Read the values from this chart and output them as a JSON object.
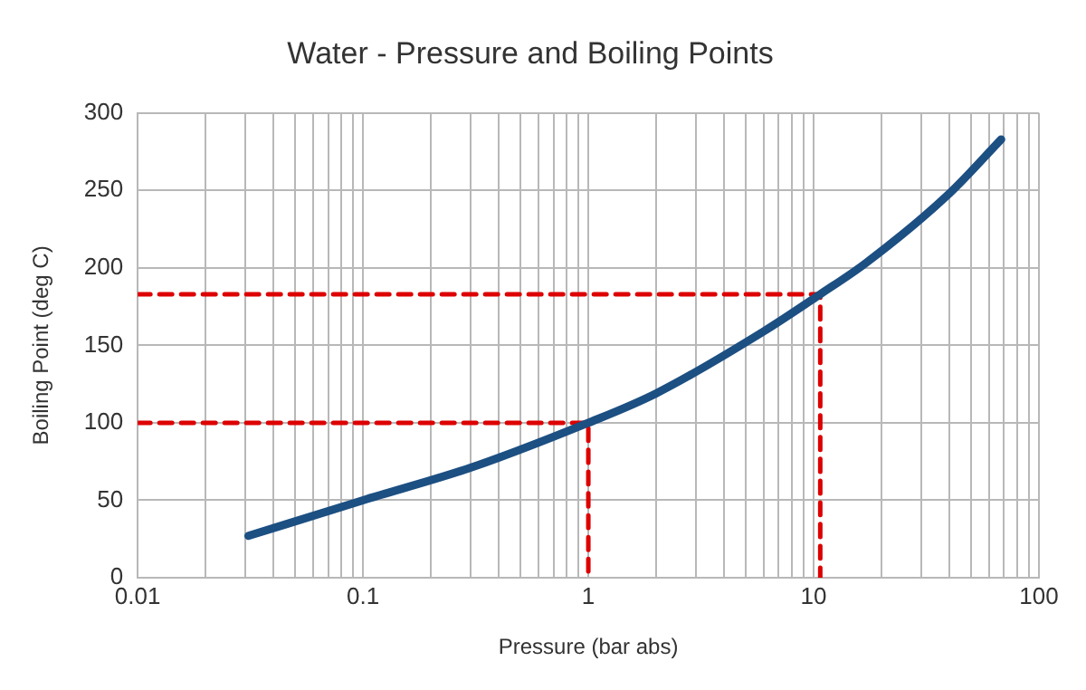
{
  "chart_data": {
    "type": "line",
    "title": "Water - Pressure and Boiling Points",
    "xlabel": "Pressure (bar abs)",
    "ylabel": "Boiling Point (deg C)",
    "log": "x",
    "grid": true,
    "legend": false,
    "marker": "none",
    "xlim": [
      0.01,
      100
    ],
    "xticks": [
      0.01,
      {
        "value": 0.02,
        "label": null
      },
      {
        "value": 0.03,
        "label": null
      },
      {
        "value": 0.04,
        "label": null
      },
      {
        "value": 0.05,
        "label": null
      },
      {
        "value": 0.06,
        "label": null
      },
      {
        "value": 0.07,
        "label": null
      },
      {
        "value": 0.08,
        "label": null
      },
      {
        "value": 0.09,
        "label": null
      },
      0.1,
      {
        "value": 0.2,
        "label": null
      },
      {
        "value": 0.3,
        "label": null
      },
      {
        "value": 0.4,
        "label": null
      },
      {
        "value": 0.5,
        "label": null
      },
      {
        "value": 0.6,
        "label": null
      },
      {
        "value": 0.7,
        "label": null
      },
      {
        "value": 0.8,
        "label": null
      },
      {
        "value": 0.9,
        "label": null
      },
      1,
      {
        "value": 2,
        "label": null
      },
      {
        "value": 3,
        "label": null
      },
      {
        "value": 4,
        "label": null
      },
      {
        "value": 5,
        "label": null
      },
      {
        "value": 6,
        "label": null
      },
      {
        "value": 7,
        "label": null
      },
      {
        "value": 8,
        "label": null
      },
      {
        "value": 9,
        "label": null
      },
      10,
      {
        "value": 20,
        "label": null
      },
      {
        "value": 30,
        "label": null
      },
      {
        "value": 40,
        "label": null
      },
      {
        "value": 50,
        "label": null
      },
      {
        "value": 60,
        "label": null
      },
      {
        "value": 70,
        "label": null
      },
      {
        "value": 80,
        "label": null
      },
      {
        "value": 90,
        "label": null
      },
      100
    ],
    "ylim": [
      0,
      300
    ],
    "yticks": [
      0,
      50,
      100,
      150,
      200,
      250,
      300
    ],
    "series": [
      {
        "color": "#1c4f82",
        "x": [
          0.031,
          0.1,
          0.3,
          1,
          2,
          6,
          10.7,
          17,
          40,
          68
        ],
        "values": [
          27,
          50,
          71,
          100,
          119,
          159,
          183,
          203,
          248,
          283
        ]
      },
      {
        "color": "#dd0000",
        "line_style": "dashed",
        "x": [
          0.01,
          1,
          1
        ],
        "values": [
          100,
          100,
          0
        ]
      },
      {
        "color": "#dd0000",
        "line_style": "dashed",
        "x": [
          0.01,
          10.7,
          10.7
        ],
        "values": [
          183,
          183,
          0
        ]
      }
    ]
  }
}
